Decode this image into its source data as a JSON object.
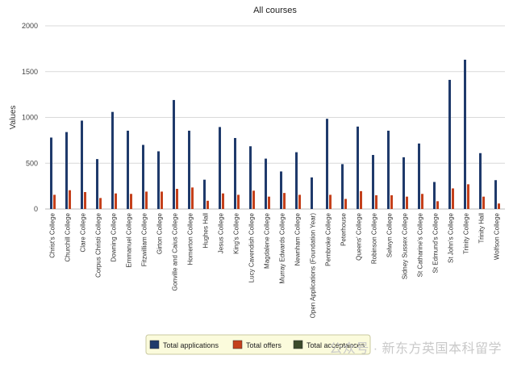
{
  "chart_data": {
    "type": "bar",
    "title": "All courses",
    "xlabel": "",
    "ylabel": "Values",
    "ylim": [
      0,
      2000
    ],
    "yticks": [
      0,
      500,
      1000,
      1500,
      2000
    ],
    "grid": true,
    "legend_position": "bottom",
    "categories": [
      "Christ's College",
      "Churchill College",
      "Clare College",
      "Corpus Christi College",
      "Downing College",
      "Emmanuel College",
      "Fitzwilliam College",
      "Girton College",
      "Gonville and Caius College",
      "Homerton College",
      "Hughes Hall",
      "Jesus College",
      "King's College",
      "Lucy Cavendish College",
      "Magdalene College",
      "Murray Edwards College",
      "Newnham College",
      "Open Applications (Foundation Year)",
      "Pembroke College",
      "Peterhouse",
      "Queens' College",
      "Robinson College",
      "Selwyn College",
      "Sidney Sussex College",
      "St Catharine's College",
      "St Edmund's College",
      "St John's College",
      "Trinity College",
      "Trinity Hall",
      "Wolfson College"
    ],
    "series": [
      {
        "name": "Total applications",
        "color": "#1f3a6b",
        "values": [
          780,
          840,
          965,
          545,
          1060,
          855,
          700,
          630,
          1190,
          855,
          320,
          895,
          775,
          685,
          550,
          410,
          620,
          345,
          985,
          490,
          900,
          590,
          855,
          565,
          715,
          295,
          1410,
          1630,
          610,
          315
        ]
      },
      {
        "name": "Total offers",
        "color": "#c4401b",
        "values": [
          155,
          205,
          185,
          120,
          170,
          165,
          190,
          190,
          220,
          235,
          90,
          170,
          155,
          200,
          135,
          175,
          155,
          0,
          155,
          110,
          195,
          150,
          150,
          135,
          165,
          85,
          225,
          270,
          135,
          60
        ]
      },
      {
        "name": "Total acceptances",
        "color": "#3b4a2a",
        "values": [
          0,
          0,
          0,
          0,
          0,
          0,
          0,
          0,
          0,
          0,
          0,
          0,
          0,
          0,
          0,
          0,
          0,
          0,
          0,
          0,
          0,
          0,
          0,
          0,
          0,
          0,
          0,
          0,
          0,
          0
        ]
      }
    ]
  },
  "watermark": "公众号 · 新东方英国本科留学"
}
